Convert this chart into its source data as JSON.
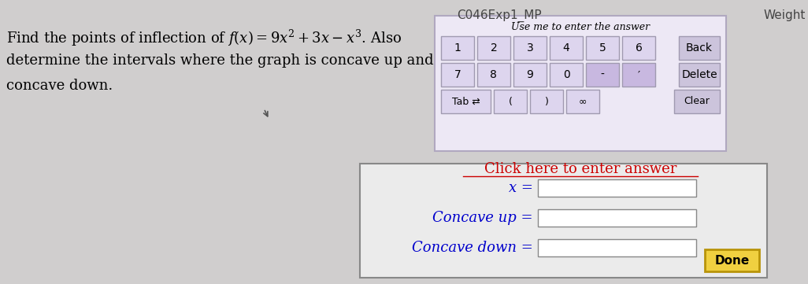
{
  "title": "C046Exp1_MP",
  "weight_text": "Weight",
  "question_text_line1": "Find the points of inflection of $f(x) = 9x^2 + 3x - x^3$. Also",
  "question_text_line2": "determine the intervals where the graph is concave up and",
  "question_text_line3": "concave down.",
  "use_me_text": "Use me to enter the answer",
  "keypad_row1": [
    "1",
    "2",
    "3",
    "4",
    "5",
    "6",
    "Back"
  ],
  "keypad_row2": [
    "7",
    "8",
    "9",
    "0",
    "-",
    "′",
    "Delete"
  ],
  "keypad_row3": [
    "Tab ⇄",
    "(",
    ")",
    "∞",
    "Clear"
  ],
  "click_text": "Click here to enter answer",
  "label_x": "x =",
  "label_concave_up": "Concave up =",
  "label_concave_down": "Concave down =",
  "done_text": "Done",
  "bg_color": "#d0cece",
  "keypad_bg": "#ede8f5",
  "keypad_button_color": "#ddd5ee",
  "keypad_button_border": "#a09ab0",
  "special_button_color": "#c8b8e0",
  "back_delete_clear_color": "#ccc4dc",
  "input_box_color": "#ffffff",
  "input_box_border": "#888888",
  "answer_area_bg": "#ebebeb",
  "done_button_color": "#f0d040",
  "done_button_border": "#b8940a",
  "text_color_black": "#000000",
  "text_color_blue": "#0000cc",
  "text_color_red": "#cc0000",
  "header_color": "#444444"
}
